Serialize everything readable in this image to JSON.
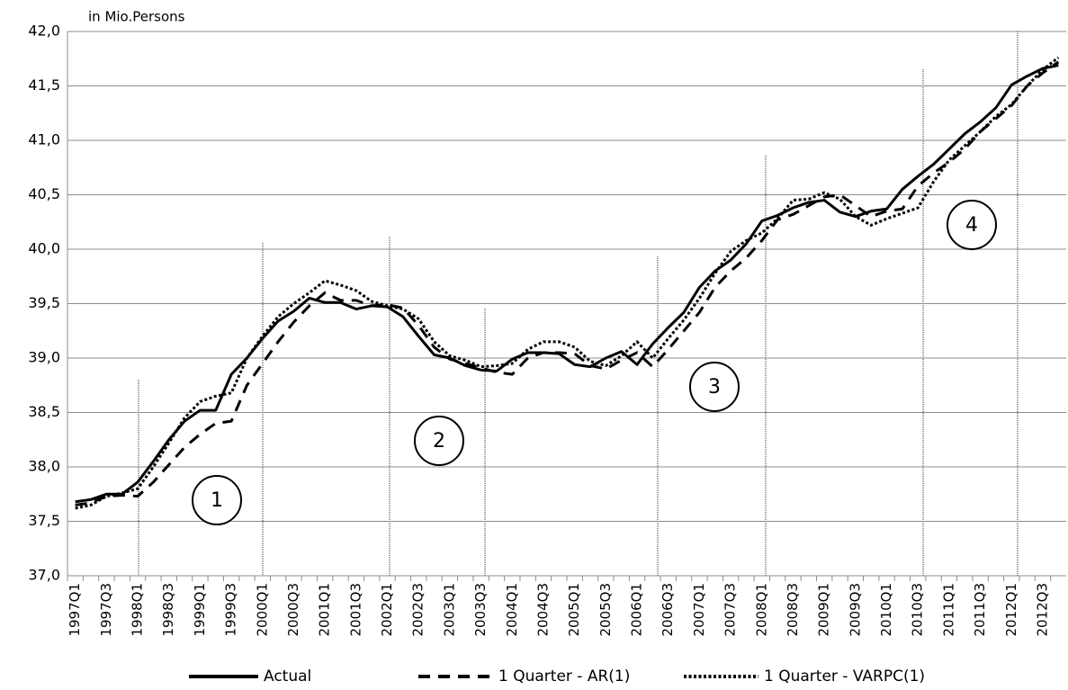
{
  "chart_data": {
    "type": "line",
    "ylabel": "in Mio.Persons",
    "categories": [
      "1997Q1",
      null,
      "1997Q3",
      null,
      "1998Q1",
      null,
      "1998Q3",
      null,
      "1999Q1",
      null,
      "1999Q3",
      null,
      "2000Q1",
      null,
      "2000Q3",
      null,
      "2001Q1",
      null,
      "2001Q3",
      null,
      "2002Q1",
      null,
      "2002Q3",
      null,
      "2003Q1",
      null,
      "2003Q3",
      null,
      "2004Q1",
      null,
      "2004Q3",
      null,
      "2005Q1",
      null,
      "2005Q3",
      null,
      "2006Q1",
      null,
      "2006Q3",
      null,
      "2007Q1",
      null,
      "2007Q3",
      null,
      "2008Q1",
      null,
      "2008Q3",
      null,
      "2009Q1",
      null,
      "2009Q3",
      null,
      "2010Q1",
      null,
      "2010Q3",
      null,
      "2011Q1",
      null,
      "2011Q3",
      null,
      "2012Q1",
      null,
      "2012Q3",
      null
    ],
    "series": [
      {
        "name": "Actual",
        "color": "#000000",
        "dash": "solid",
        "values": [
          37.68,
          37.7,
          37.75,
          37.75,
          37.86,
          38.05,
          38.25,
          38.42,
          38.52,
          38.52,
          38.85,
          39.0,
          39.18,
          39.34,
          39.43,
          39.55,
          39.51,
          39.51,
          39.45,
          39.48,
          39.47,
          39.38,
          39.2,
          39.03,
          39.0,
          38.93,
          38.89,
          38.88,
          38.99,
          39.05,
          39.05,
          39.04,
          38.94,
          38.92,
          39.0,
          39.06,
          38.94,
          39.13,
          39.28,
          39.42,
          39.65,
          39.8,
          39.9,
          40.05,
          40.26,
          40.31,
          40.38,
          40.43,
          40.45,
          40.34,
          40.3,
          40.35,
          40.37,
          40.55,
          40.67,
          40.78,
          40.92,
          41.06,
          41.17,
          41.3,
          41.51,
          41.59,
          41.66,
          41.69
        ]
      },
      {
        "name": "1 Quarter - AR(1)",
        "color": "#000000",
        "dash": "dashed",
        "values": [
          37.65,
          37.67,
          37.73,
          37.74,
          37.73,
          37.86,
          38.02,
          38.18,
          38.3,
          38.4,
          38.42,
          38.75,
          38.95,
          39.15,
          39.33,
          39.48,
          39.6,
          39.53,
          39.53,
          39.48,
          39.49,
          39.46,
          39.3,
          39.1,
          38.99,
          38.95,
          38.91,
          38.87,
          38.85,
          39.0,
          39.05,
          39.05,
          39.04,
          38.93,
          38.9,
          38.98,
          39.05,
          38.92,
          39.08,
          39.25,
          39.42,
          39.65,
          39.8,
          39.92,
          40.08,
          40.27,
          40.32,
          40.4,
          40.48,
          40.5,
          40.4,
          40.3,
          40.35,
          40.37,
          40.58,
          40.7,
          40.8,
          40.92,
          41.08,
          41.2,
          41.32,
          41.5,
          41.62,
          41.72
        ]
      },
      {
        "name": "1 Quarter - VARPC(1)",
        "color": "#000000",
        "dash": "dotted",
        "values": [
          37.62,
          37.65,
          37.73,
          37.76,
          37.8,
          38.0,
          38.22,
          38.45,
          38.6,
          38.65,
          38.68,
          39.0,
          39.2,
          39.38,
          39.5,
          39.6,
          39.71,
          39.67,
          39.62,
          39.52,
          39.48,
          39.45,
          39.36,
          39.15,
          39.02,
          38.98,
          38.92,
          38.93,
          38.95,
          39.08,
          39.15,
          39.15,
          39.1,
          38.97,
          38.93,
          39.02,
          39.15,
          39.0,
          39.18,
          39.35,
          39.55,
          39.78,
          39.98,
          40.08,
          40.15,
          40.28,
          40.45,
          40.46,
          40.52,
          40.46,
          40.3,
          40.22,
          40.28,
          40.33,
          40.38,
          40.62,
          40.82,
          40.95,
          41.08,
          41.22,
          41.33,
          41.5,
          41.65,
          41.76
        ]
      }
    ],
    "ylim": [
      37,
      42
    ],
    "yticks": [
      {
        "value": 37,
        "label": "37,0"
      },
      {
        "value": 37.5,
        "label": "37,5"
      },
      {
        "value": 38,
        "label": "38,0"
      },
      {
        "value": 38.5,
        "label": "38,5"
      },
      {
        "value": 39,
        "label": "39,0"
      },
      {
        "value": 39.5,
        "label": "39,5"
      },
      {
        "value": 40,
        "label": "40,0"
      },
      {
        "value": 40.5,
        "label": "40,5"
      },
      {
        "value": 41,
        "label": "41,0"
      },
      {
        "value": 41.5,
        "label": "41,5"
      },
      {
        "value": 42,
        "label": "42,0"
      }
    ],
    "grid": true,
    "annotations": [
      "1",
      "2",
      "3",
      "4"
    ]
  }
}
